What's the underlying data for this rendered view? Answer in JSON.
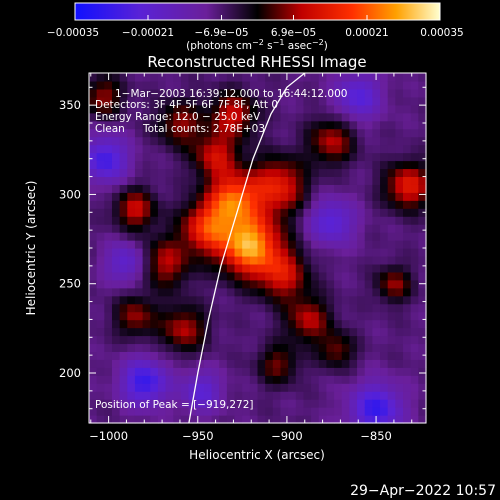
{
  "chart_data": {
    "type": "heatmap",
    "title": "Reconstructed RHESSI Image",
    "xlabel": "Heliocentric X (arcsec)",
    "ylabel": "Heliocentric Y (arcsec)",
    "xlim": [
      -1011,
      -822
    ],
    "ylim": [
      172,
      368
    ],
    "xticks": [
      -1000,
      -950,
      -900,
      -850
    ],
    "xtick_labels": [
      "−1000",
      "−950",
      "−900",
      "−850"
    ],
    "yticks": [
      200,
      250,
      300,
      350
    ],
    "ytick_labels": [
      "200",
      "250",
      "300",
      "350"
    ],
    "colorbar": {
      "min": -0.00035,
      "max": 0.00035,
      "ticks": [
        -0.00035,
        -0.00021,
        -6.9e-05,
        6.9e-05,
        0.00021,
        0.00035
      ],
      "tick_labels": [
        "−0.00035",
        "−0.00021",
        "−6.9e−05",
        "6.9e−05",
        "0.00021",
        "0.00035"
      ],
      "label_prefix": "(photons cm",
      "label_exp1": "−2",
      "label_mid": " s",
      "label_exp2": "−1",
      "label_suffix": " asec",
      "label_exp3": "−2",
      "label_end": ")"
    },
    "annotations": {
      "time_range": "1−Mar−2003 16:39:12.000 to 16:44:12.000",
      "detectors": "Detectors: 3F 4F 5F 6F 7F 8F, Att 0",
      "energy": "Energy Range: 12.0 − 25.0 keV",
      "clean_label": "Clean",
      "total_counts": "Total counts: 2.78E+03",
      "peak": "Position of Peak = [−919,272]"
    },
    "peak": [
      -919,
      272
    ],
    "limb_x": [
      -955,
      -950,
      -944,
      -937,
      -928,
      -919,
      -909,
      -900,
      -890
    ],
    "limb_y": [
      172,
      200,
      230,
      260,
      290,
      320,
      345,
      360,
      368
    ],
    "sources": [
      {
        "x": -921,
        "y": 272,
        "amp": 1.0,
        "sigma": 12
      },
      {
        "x": -930,
        "y": 298,
        "amp": 0.75,
        "sigma": 10
      },
      {
        "x": -945,
        "y": 282,
        "amp": 0.65,
        "sigma": 10
      },
      {
        "x": -905,
        "y": 305,
        "amp": 0.6,
        "sigma": 11
      },
      {
        "x": -940,
        "y": 322,
        "amp": 0.5,
        "sigma": 9
      },
      {
        "x": -968,
        "y": 262,
        "amp": 0.45,
        "sigma": 10
      },
      {
        "x": -902,
        "y": 255,
        "amp": 0.5,
        "sigma": 10
      },
      {
        "x": -930,
        "y": 345,
        "amp": 0.5,
        "sigma": 9
      },
      {
        "x": -960,
        "y": 340,
        "amp": 0.4,
        "sigma": 9
      },
      {
        "x": -985,
        "y": 292,
        "amp": 0.5,
        "sigma": 8
      },
      {
        "x": -888,
        "y": 230,
        "amp": 0.45,
        "sigma": 9
      },
      {
        "x": -958,
        "y": 225,
        "amp": 0.45,
        "sigma": 9
      },
      {
        "x": -985,
        "y": 232,
        "amp": 0.4,
        "sigma": 8
      },
      {
        "x": -875,
        "y": 330,
        "amp": 0.45,
        "sigma": 9
      },
      {
        "x": -832,
        "y": 305,
        "amp": 0.6,
        "sigma": 9
      },
      {
        "x": -1003,
        "y": 355,
        "amp": 0.4,
        "sigma": 8
      },
      {
        "x": -840,
        "y": 250,
        "amp": 0.4,
        "sigma": 7
      },
      {
        "x": -905,
        "y": 205,
        "amp": 0.35,
        "sigma": 8
      },
      {
        "x": -872,
        "y": 213,
        "amp": 0.35,
        "sigma": 7
      },
      {
        "x": -980,
        "y": 195,
        "amp": -0.6,
        "sigma": 9
      },
      {
        "x": -850,
        "y": 180,
        "amp": -0.6,
        "sigma": 10
      },
      {
        "x": -1002,
        "y": 320,
        "amp": -0.55,
        "sigma": 9
      },
      {
        "x": -875,
        "y": 285,
        "amp": -0.45,
        "sigma": 9
      },
      {
        "x": -860,
        "y": 355,
        "amp": -0.45,
        "sigma": 9
      },
      {
        "x": -990,
        "y": 262,
        "amp": -0.4,
        "sigma": 8
      },
      {
        "x": -948,
        "y": 190,
        "amp": -0.4,
        "sigma": 8
      }
    ]
  },
  "footer": {
    "timestamp": "29−Apr−2022 10:57"
  }
}
